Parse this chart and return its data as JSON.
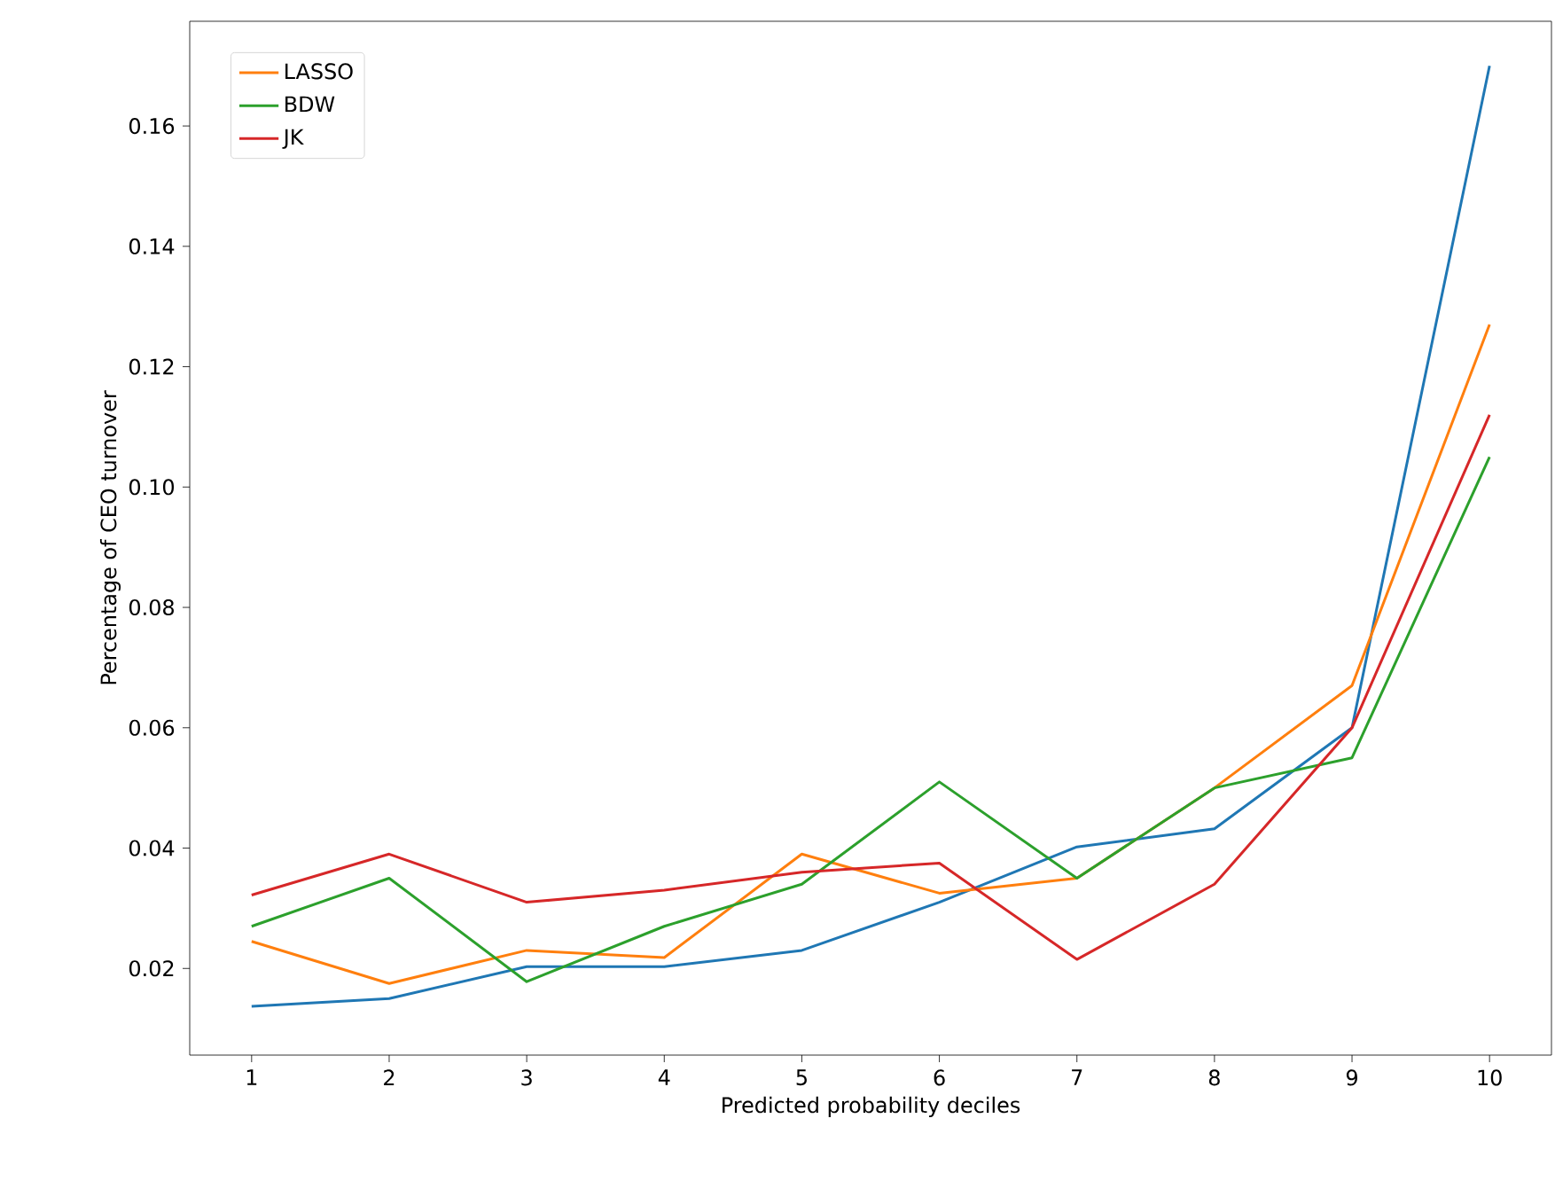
{
  "chart_data": {
    "type": "line",
    "xlabel": "Predicted probability deciles",
    "ylabel": "Percentage of CEO turnover",
    "x": [
      1,
      2,
      3,
      4,
      5,
      6,
      7,
      8,
      9,
      10
    ],
    "series": [
      {
        "color": "#1f77b4",
        "values": [
          0.0137,
          0.015,
          0.0203,
          0.0203,
          0.023,
          0.031,
          0.0402,
          0.0432,
          0.06,
          0.17
        ]
      },
      {
        "name": "LASSO",
        "color": "#ff7f0e",
        "values": [
          0.0245,
          0.0175,
          0.023,
          0.0218,
          0.039,
          0.0325,
          0.035,
          0.05,
          0.067,
          0.127
        ]
      },
      {
        "name": "BDW",
        "color": "#2ca02c",
        "values": [
          0.027,
          0.035,
          0.0178,
          0.027,
          0.034,
          0.051,
          0.035,
          0.05,
          0.055,
          0.105
        ]
      },
      {
        "name": "JK",
        "color": "#d62728",
        "values": [
          0.0322,
          0.039,
          0.031,
          0.033,
          0.036,
          0.0375,
          0.0215,
          0.034,
          0.06,
          0.112
        ]
      }
    ],
    "xlim": [
      0.55,
      10.45
    ],
    "ylim": [
      0.0056,
      0.1774
    ],
    "xticks": [
      1,
      2,
      3,
      4,
      5,
      6,
      7,
      8,
      9,
      10
    ],
    "yticks": [
      {
        "value": 0.02,
        "label": "0.02"
      },
      {
        "value": 0.04,
        "label": "0.04"
      },
      {
        "value": 0.06,
        "label": "0.06"
      },
      {
        "value": 0.08,
        "label": "0.08"
      },
      {
        "value": 0.1,
        "label": "0.10"
      },
      {
        "value": 0.12,
        "label": "0.12"
      },
      {
        "value": 0.14,
        "label": "0.14"
      },
      {
        "value": 0.16,
        "label": "0.16"
      }
    ],
    "grid": false,
    "legend": "top left",
    "marker": "none",
    "line_style": "solid"
  }
}
